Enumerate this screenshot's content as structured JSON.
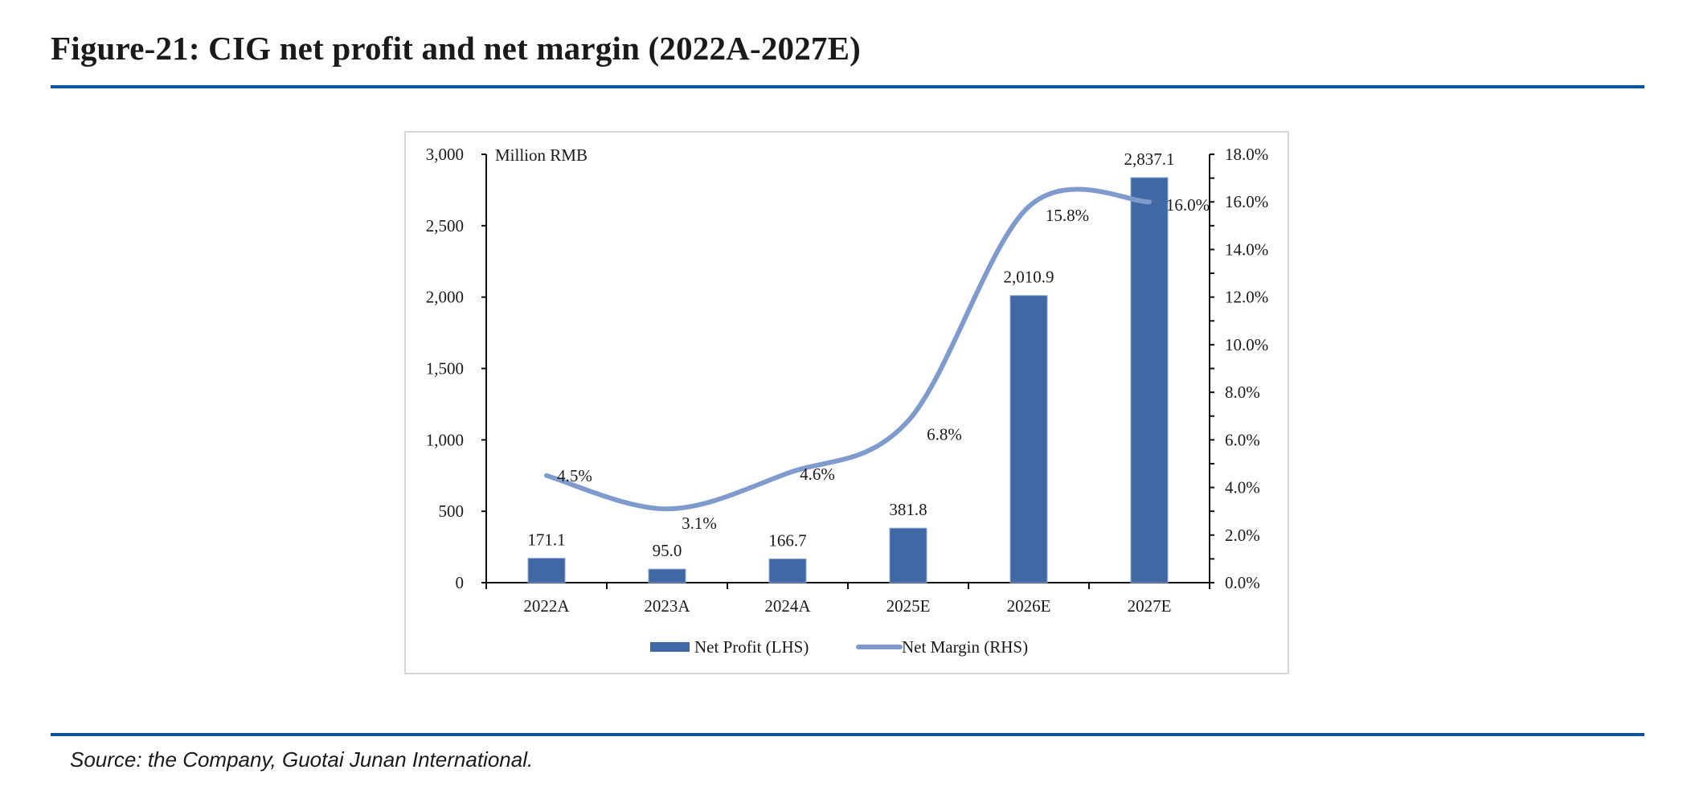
{
  "header": {
    "title": "Figure-21: CIG net profit and net margin (2022A-2027E)"
  },
  "footer": {
    "source": "Source: the Company, Guotai Junan International."
  },
  "colors": {
    "rule": "#0D559B",
    "bar": "#4068A5",
    "line": "#7F9BCD",
    "axis": "#111111",
    "frame": "#d6d6d6"
  },
  "chart_data": {
    "type": "bar",
    "title": "Figure-21: CIG net profit and net margin (2022A-2027E)",
    "unit_label": "Million RMB",
    "categories": [
      "2022A",
      "2023A",
      "2024A",
      "2025E",
      "2026E",
      "2027E"
    ],
    "series": [
      {
        "name": "Net Profit (LHS)",
        "type": "bar",
        "axis": "left",
        "values": [
          171.1,
          95.0,
          166.7,
          381.8,
          2010.9,
          2837.1
        ],
        "labels": [
          "171.1",
          "95.0",
          "166.7",
          "381.8",
          "2,010.9",
          "2,837.1"
        ]
      },
      {
        "name": "Net Margin (RHS)",
        "type": "line",
        "smooth": true,
        "axis": "right",
        "values": [
          4.5,
          3.1,
          4.6,
          6.8,
          15.8,
          16.0
        ],
        "labels": [
          "4.5%",
          "3.1%",
          "4.6%",
          "6.8%",
          "15.8%",
          "16.0%"
        ]
      }
    ],
    "left_axis": {
      "ylim": [
        0,
        3000
      ],
      "ticks": [
        0,
        500,
        1000,
        1500,
        2000,
        2500,
        3000
      ],
      "tick_labels": [
        "0",
        "500",
        "1,000",
        "1,500",
        "2,000",
        "2,500",
        "3,000"
      ]
    },
    "right_axis": {
      "ylim": [
        0,
        18
      ],
      "ticks": [
        0,
        2,
        4,
        6,
        8,
        10,
        12,
        14,
        16,
        18
      ],
      "tick_labels": [
        "0.0%",
        "2.0%",
        "4.0%",
        "6.0%",
        "8.0%",
        "10.0%",
        "12.0%",
        "14.0%",
        "16.0%",
        "18.0%"
      ],
      "minor_step": 1
    },
    "grid": false,
    "legend": {
      "position": "bottom",
      "items": [
        "Net Profit (LHS)",
        "Net Margin (RHS)"
      ]
    },
    "xlabel": "",
    "ylabel": "Million RMB"
  }
}
